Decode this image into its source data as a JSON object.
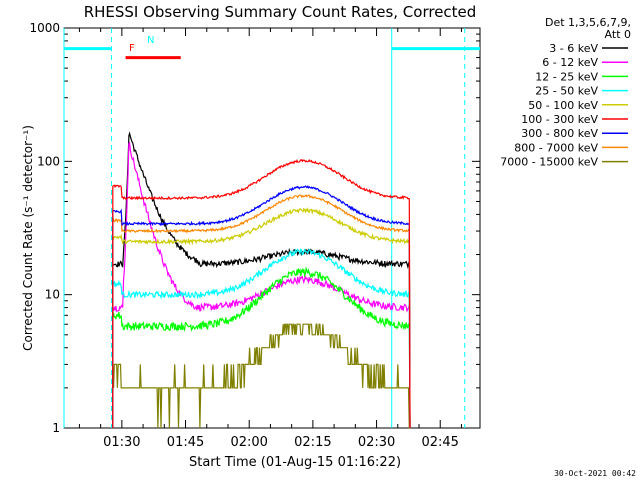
{
  "chart_data": {
    "type": "line",
    "title": "RHESSI Observing Summary Count Rates, Corrected",
    "xlabel": "Start Time (01-Aug-15 01:16:22)",
    "ylabel": "Corrected Count Rate (s⁻¹ detector⁻¹)",
    "y_scale": "log",
    "ylim": [
      1,
      1000
    ],
    "xlim_minutes_after_start": [
      0,
      98
    ],
    "x_tick_labels": [
      "01:30",
      "01:45",
      "02:00",
      "02:15",
      "02:30",
      "02:45"
    ],
    "x_tick_minutes_after_start": [
      13.63,
      28.63,
      43.63,
      58.63,
      73.63,
      88.63
    ],
    "y_tick_labels": [
      "1",
      "10",
      "100",
      "1000"
    ],
    "y_tick_values": [
      1,
      10,
      100,
      1000
    ],
    "legend_header": [
      "Det 1,3,5,6,7,9,",
      "Att 0"
    ],
    "legend_placement": "right",
    "footer_timestamp": "30-Oct-2021 00:42",
    "series": [
      {
        "name": "3 - 6 keV",
        "color": "#000000",
        "base": 17,
        "peak_extra": 4,
        "pre": 17,
        "spike": 150,
        "spike_decay": 4.0,
        "noise": 0.05
      },
      {
        "name": "6 - 12 keV",
        "color": "#ff00ff",
        "base": 8,
        "peak_extra": 5,
        "pre": 8,
        "spike": 130,
        "spike_decay": 3.2,
        "noise": 0.06
      },
      {
        "name": "12 - 25 keV",
        "color": "#00ff00",
        "base": 5.8,
        "peak_extra": 9,
        "pre": 7,
        "spike": 0,
        "spike_decay": 1,
        "noise": 0.07
      },
      {
        "name": "25 - 50 keV",
        "color": "#00ffff",
        "base": 10,
        "peak_extra": 11,
        "pre": 12,
        "spike": 0,
        "spike_decay": 1,
        "noise": 0.05
      },
      {
        "name": "50 - 100 keV",
        "color": "#cccc00",
        "base": 25,
        "peak_extra": 18,
        "pre": 27,
        "spike": 0,
        "spike_decay": 1,
        "noise": 0.03
      },
      {
        "name": "100 - 300 keV",
        "color": "#ff0000",
        "base": 53,
        "peak_extra": 48,
        "pre": 65,
        "spike": 0,
        "spike_decay": 1,
        "noise": 0.02
      },
      {
        "name": "300 - 800 keV",
        "color": "#0000ff",
        "base": 34,
        "peak_extra": 30,
        "pre": 42,
        "spike": 0,
        "spike_decay": 1,
        "noise": 0.02
      },
      {
        "name": "800 - 7000 keV",
        "color": "#ff8800",
        "base": 30,
        "peak_extra": 25,
        "pre": 36,
        "spike": 0,
        "spike_decay": 1,
        "noise": 0.02
      },
      {
        "name": "7000 - 15000 keV",
        "color": "#808000",
        "base": 2,
        "peak_extra": 3.8,
        "pre": 2.5,
        "spike": 0,
        "spike_decay": 1,
        "noise": 0.0,
        "stepped": true
      }
    ],
    "data_window_minutes": [
      11.5,
      81.5
    ],
    "peak_minute": 56.5,
    "peak_width_minutes": 11,
    "annotations": {
      "night_bar_color": "#00ffff",
      "night_intervals_minutes": [
        [
          0,
          11.2
        ],
        [
          77.2,
          98
        ]
      ],
      "night_marker_minutes": [
        0,
        11.2,
        77.2,
        94.4
      ],
      "flag_color": "#ff0000",
      "flag_interval_minutes": [
        14.5,
        27.5
      ],
      "flag_label_f": "F",
      "flag_label_n": "N"
    }
  }
}
